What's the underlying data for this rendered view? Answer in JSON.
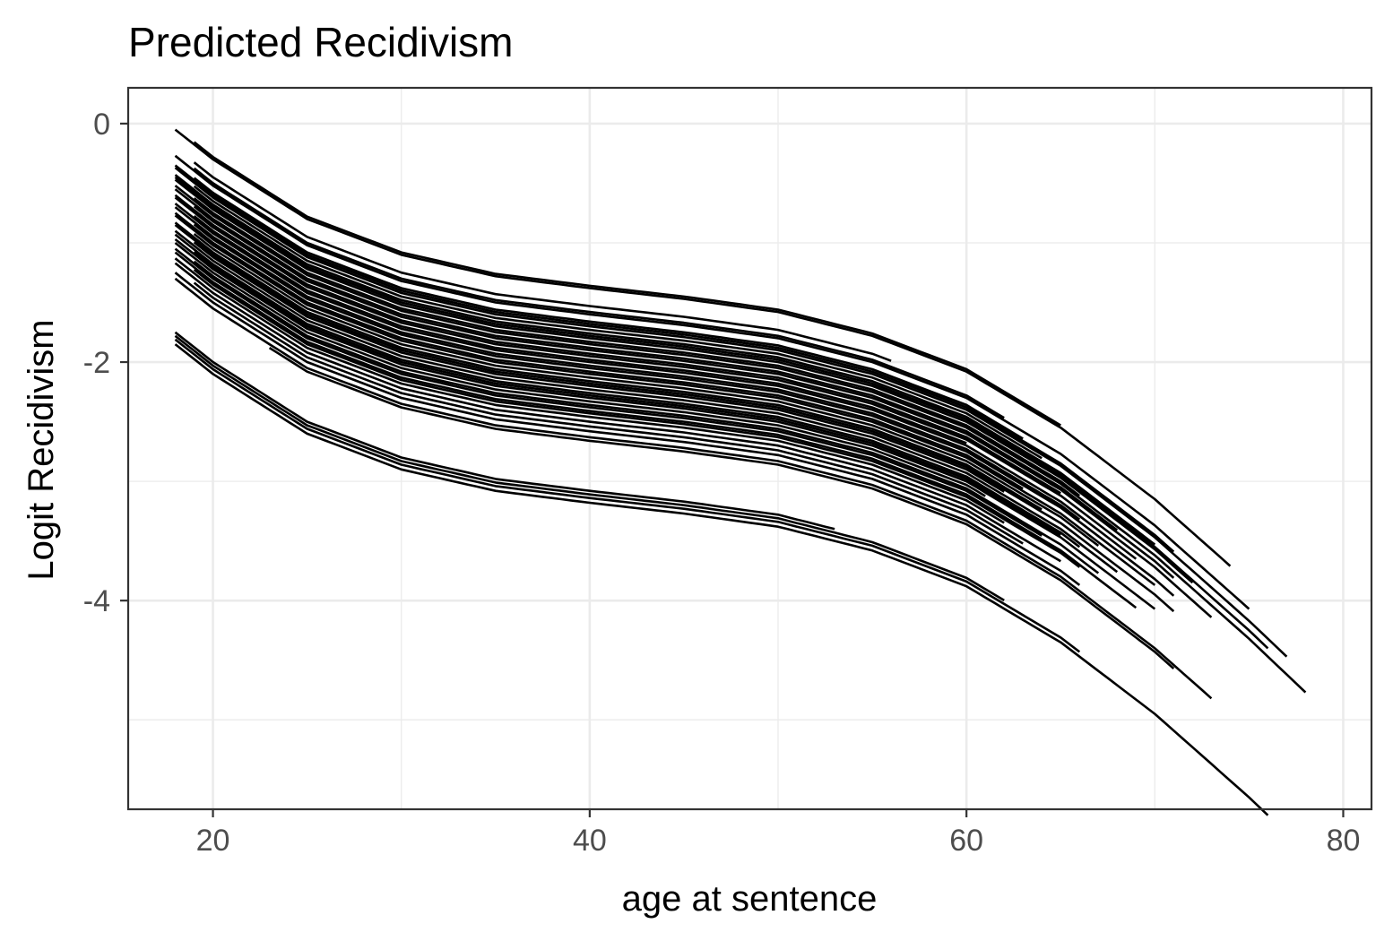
{
  "chart_data": {
    "type": "line",
    "title": "Predicted Recidivism",
    "xlabel": "age at sentence",
    "ylabel": "Logit Recidivism",
    "xlim": [
      15.5,
      81.5
    ],
    "ylim": [
      -5.75,
      0.3
    ],
    "x_ticks": [
      20,
      40,
      60,
      80
    ],
    "x_tick_labels": [
      "20",
      "40",
      "60",
      "80"
    ],
    "y_ticks": [
      0,
      -2,
      -4
    ],
    "y_tick_labels": [
      "0",
      "-2",
      "-4"
    ],
    "x_minor": [
      30,
      50,
      70
    ],
    "y_minor": [
      -1,
      -3,
      -5
    ],
    "grid": true,
    "legend": "none",
    "color": "#000000",
    "base_curve": {
      "x": [
        18,
        20,
        25,
        30,
        35,
        40,
        45,
        50,
        55,
        60,
        65,
        70,
        75,
        78
      ],
      "y": [
        -0.55,
        -0.8,
        -1.3,
        -1.6,
        -1.78,
        -1.88,
        -1.97,
        -2.08,
        -2.28,
        -2.58,
        -3.05,
        -3.65,
        -4.35,
        -4.8
      ]
    },
    "series": [
      {
        "x_start": 19,
        "x_end": 65,
        "offset": 0.52
      },
      {
        "x_start": 18,
        "x_end": 74,
        "offset": 0.5
      },
      {
        "x_start": 19,
        "x_end": 56,
        "offset": 0.35
      },
      {
        "x_start": 19,
        "x_end": 62,
        "offset": 0.3
      },
      {
        "x_start": 18,
        "x_end": 75,
        "offset": 0.28
      },
      {
        "x_start": 19,
        "x_end": 63,
        "offset": 0.22
      },
      {
        "x_start": 18,
        "x_end": 71,
        "offset": 0.2
      },
      {
        "x_start": 18,
        "x_end": 77,
        "offset": 0.18
      },
      {
        "x_start": 19,
        "x_end": 64,
        "offset": 0.15
      },
      {
        "x_start": 18,
        "x_end": 70,
        "offset": 0.12
      },
      {
        "x_start": 18,
        "x_end": 76,
        "offset": 0.1
      },
      {
        "x_start": 18,
        "x_end": 72,
        "offset": 0.08
      },
      {
        "x_start": 19,
        "x_end": 66,
        "offset": 0.05
      },
      {
        "x_start": 18,
        "x_end": 78,
        "offset": 0.03
      },
      {
        "x_start": 18,
        "x_end": 68,
        "offset": 0.0
      },
      {
        "x_start": 19,
        "x_end": 71,
        "offset": -0.02
      },
      {
        "x_start": 18,
        "x_end": 65,
        "offset": -0.05
      },
      {
        "x_start": 18,
        "x_end": 73,
        "offset": -0.07
      },
      {
        "x_start": 19,
        "x_end": 60,
        "offset": -0.1
      },
      {
        "x_start": 18,
        "x_end": 69,
        "offset": -0.12
      },
      {
        "x_start": 18,
        "x_end": 66,
        "offset": -0.15
      },
      {
        "x_start": 19,
        "x_end": 71,
        "offset": -0.17
      },
      {
        "x_start": 18,
        "x_end": 63,
        "offset": -0.2
      },
      {
        "x_start": 18,
        "x_end": 70,
        "offset": -0.22
      },
      {
        "x_start": 19,
        "x_end": 67,
        "offset": -0.25
      },
      {
        "x_start": 18,
        "x_end": 64,
        "offset": -0.28
      },
      {
        "x_start": 18,
        "x_end": 71,
        "offset": -0.3
      },
      {
        "x_start": 19,
        "x_end": 62,
        "offset": -0.32
      },
      {
        "x_start": 18,
        "x_end": 68,
        "offset": -0.35
      },
      {
        "x_start": 18,
        "x_end": 66,
        "offset": -0.38
      },
      {
        "x_start": 19,
        "x_end": 65,
        "offset": -0.4
      },
      {
        "x_start": 18,
        "x_end": 70,
        "offset": -0.42
      },
      {
        "x_start": 18,
        "x_end": 61,
        "offset": -0.45
      },
      {
        "x_start": 19,
        "x_end": 67,
        "offset": -0.48
      },
      {
        "x_start": 18,
        "x_end": 64,
        "offset": -0.5
      },
      {
        "x_start": 18,
        "x_end": 69,
        "offset": -0.53
      },
      {
        "x_start": 19,
        "x_end": 66,
        "offset": -0.55
      },
      {
        "x_start": 18,
        "x_end": 62,
        "offset": -0.58
      },
      {
        "x_start": 18,
        "x_end": 65,
        "offset": -0.62
      },
      {
        "x_start": 19,
        "x_end": 63,
        "offset": -0.66
      },
      {
        "x_start": 18,
        "x_end": 66,
        "offset": -0.7
      },
      {
        "x_start": 18,
        "x_end": 73,
        "offset": -0.75
      },
      {
        "x_start": 23,
        "x_end": 71,
        "offset": -0.78
      },
      {
        "x_start": 18,
        "x_end": 53,
        "offset": -1.2
      },
      {
        "x_start": 18,
        "x_end": 62,
        "offset": -1.23
      },
      {
        "x_start": 18,
        "x_end": 66,
        "offset": -1.26
      },
      {
        "x_start": 18,
        "x_end": 76,
        "offset": -1.3
      }
    ]
  }
}
